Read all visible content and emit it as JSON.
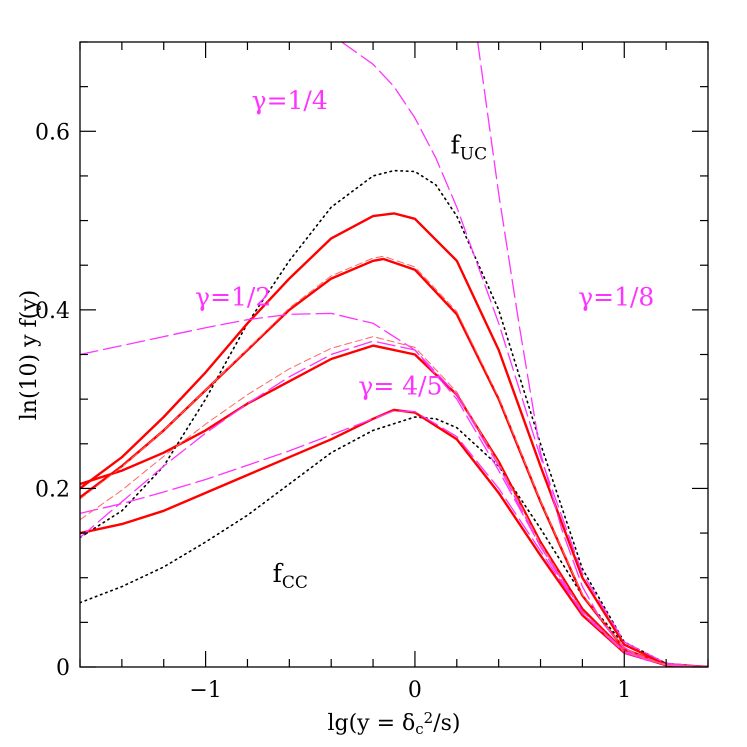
{
  "chart_data": {
    "type": "line",
    "xlabel": "lg(y = δc²/s)",
    "ylabel": "ln(10)  y f(y)",
    "xlim": [
      -1.6,
      1.4
    ],
    "ylim": [
      0,
      0.7
    ],
    "grid": false,
    "x_major_ticks": [
      -1,
      0,
      1
    ],
    "x_major_tick_labels": [
      "−1",
      "0",
      "1"
    ],
    "y_major_ticks": [
      0,
      0.2,
      0.4,
      0.6
    ],
    "y_major_tick_labels": [
      "0",
      "0.2",
      "0.4",
      "0.6"
    ],
    "annotations": [
      {
        "text": "γ=1/4",
        "x": -0.78,
        "y": 0.625,
        "color": "#ff33ff"
      },
      {
        "text": "γ=1/2",
        "x": -1.05,
        "y": 0.405,
        "color": "#ff33ff"
      },
      {
        "text": "γ=1/8",
        "x": 0.78,
        "y": 0.405,
        "color": "#ff33ff"
      },
      {
        "text": "γ= 4/5",
        "x": -0.27,
        "y": 0.305,
        "color": "#ff33ff"
      },
      {
        "text": "f_UC",
        "x": 0.17,
        "y": 0.575,
        "color": "#000000"
      },
      {
        "text": "f_CC",
        "x": -0.68,
        "y": 0.095,
        "color": "#000000"
      }
    ],
    "series": [
      {
        "style": "dotted",
        "color": "#000000",
        "x": [
          -1.6,
          -1.4,
          -1.2,
          -1.0,
          -0.8,
          -0.6,
          -0.4,
          -0.2,
          -0.1,
          0.0,
          0.1,
          0.2,
          0.4,
          0.6,
          0.8,
          1.0,
          1.2,
          1.4
        ],
        "y": [
          0.145,
          0.175,
          0.225,
          0.3,
          0.385,
          0.455,
          0.515,
          0.55,
          0.556,
          0.555,
          0.54,
          0.505,
          0.4,
          0.25,
          0.11,
          0.028,
          0.004,
          0.0
        ]
      },
      {
        "style": "dotted",
        "color": "#000000",
        "x": [
          -1.6,
          -1.4,
          -1.2,
          -1.0,
          -0.8,
          -0.6,
          -0.4,
          -0.2,
          0.0,
          0.1,
          0.2,
          0.4,
          0.6,
          0.8,
          1.0,
          1.2,
          1.4
        ],
        "y": [
          0.072,
          0.09,
          0.112,
          0.14,
          0.17,
          0.205,
          0.24,
          0.265,
          0.28,
          0.278,
          0.268,
          0.225,
          0.155,
          0.08,
          0.025,
          0.004,
          0.0
        ]
      },
      {
        "style": "solid",
        "color": "#ff0000",
        "x": [
          -1.6,
          -1.4,
          -1.2,
          -1.0,
          -0.8,
          -0.6,
          -0.4,
          -0.2,
          -0.1,
          0.0,
          0.2,
          0.4,
          0.6,
          0.8,
          1.0,
          1.2,
          1.4
        ],
        "y": [
          0.2,
          0.235,
          0.28,
          0.33,
          0.385,
          0.435,
          0.48,
          0.505,
          0.508,
          0.502,
          0.455,
          0.355,
          0.225,
          0.1,
          0.025,
          0.003,
          0.0
        ]
      },
      {
        "style": "solid",
        "color": "#ff0000",
        "x": [
          -1.6,
          -1.4,
          -1.2,
          -1.0,
          -0.8,
          -0.6,
          -0.4,
          -0.2,
          -0.15,
          0.0,
          0.2,
          0.4,
          0.6,
          0.8,
          1.0,
          1.2,
          1.4
        ],
        "y": [
          0.19,
          0.225,
          0.265,
          0.31,
          0.355,
          0.4,
          0.435,
          0.455,
          0.457,
          0.445,
          0.395,
          0.3,
          0.185,
          0.08,
          0.02,
          0.002,
          0.0
        ]
      },
      {
        "style": "solid",
        "color": "#ff0000",
        "x": [
          -1.6,
          -1.4,
          -1.2,
          -1.0,
          -0.8,
          -0.6,
          -0.4,
          -0.2,
          0.0,
          0.2,
          0.4,
          0.6,
          0.8,
          1.0,
          1.2,
          1.4
        ],
        "y": [
          0.205,
          0.22,
          0.24,
          0.265,
          0.295,
          0.32,
          0.345,
          0.36,
          0.35,
          0.305,
          0.23,
          0.14,
          0.065,
          0.018,
          0.002,
          0.0
        ]
      },
      {
        "style": "solid",
        "color": "#ff0000",
        "x": [
          -1.6,
          -1.4,
          -1.2,
          -1.0,
          -0.8,
          -0.6,
          -0.4,
          -0.2,
          -0.1,
          0.0,
          0.2,
          0.4,
          0.6,
          0.8,
          1.0,
          1.2,
          1.4
        ],
        "y": [
          0.15,
          0.16,
          0.175,
          0.195,
          0.215,
          0.235,
          0.255,
          0.278,
          0.288,
          0.285,
          0.255,
          0.195,
          0.125,
          0.058,
          0.016,
          0.002,
          0.0
        ]
      },
      {
        "style": "dashed",
        "color": "#ff33ff",
        "x": [
          -0.35,
          -0.2,
          -0.1,
          0.0,
          0.1,
          0.2,
          0.4,
          0.6,
          0.8,
          1.0,
          1.2,
          1.4
        ],
        "y": [
          0.7,
          0.675,
          0.65,
          0.615,
          0.57,
          0.515,
          0.385,
          0.235,
          0.105,
          0.028,
          0.004,
          0.0
        ]
      },
      {
        "style": "dashed",
        "color": "#ff33ff",
        "x": [
          0.3,
          0.4,
          0.5,
          0.6,
          0.7,
          0.8,
          0.9,
          1.0,
          1.1,
          1.2,
          1.4
        ],
        "y": [
          0.7,
          0.53,
          0.38,
          0.24,
          0.155,
          0.09,
          0.048,
          0.022,
          0.008,
          0.003,
          0.0
        ]
      },
      {
        "style": "dashed",
        "color": "#ff33ff",
        "x": [
          -1.6,
          -1.4,
          -1.2,
          -1.0,
          -0.8,
          -0.6,
          -0.4,
          -0.2,
          0.0,
          0.2,
          0.4,
          0.6,
          0.8,
          1.0,
          1.2,
          1.4
        ],
        "y": [
          0.35,
          0.36,
          0.37,
          0.38,
          0.389,
          0.395,
          0.396,
          0.385,
          0.355,
          0.3,
          0.22,
          0.135,
          0.062,
          0.018,
          0.002,
          0.0
        ]
      },
      {
        "style": "dashed",
        "color": "#ff33ff",
        "x": [
          -1.6,
          -1.4,
          -1.2,
          -1.0,
          -0.8,
          -0.6,
          -0.4,
          -0.2,
          0.0,
          0.2,
          0.4,
          0.6,
          0.8,
          1.0,
          1.2,
          1.4
        ],
        "y": [
          0.145,
          0.185,
          0.225,
          0.262,
          0.295,
          0.325,
          0.35,
          0.365,
          0.355,
          0.305,
          0.225,
          0.135,
          0.06,
          0.016,
          0.002,
          0.0
        ]
      },
      {
        "style": "dashed",
        "color": "#ff33ff",
        "x": [
          -1.6,
          -1.4,
          -1.2,
          -1.0,
          -0.8,
          -0.6,
          -0.4,
          -0.2,
          -0.1,
          0.0,
          0.2,
          0.4,
          0.6,
          0.8,
          1.0,
          1.2,
          1.4
        ],
        "y": [
          0.172,
          0.183,
          0.196,
          0.21,
          0.226,
          0.242,
          0.26,
          0.278,
          0.287,
          0.286,
          0.258,
          0.2,
          0.13,
          0.06,
          0.017,
          0.002,
          0.0
        ]
      },
      {
        "style": "thin-dashed",
        "color": "#ff6666",
        "x": [
          -1.6,
          -1.4,
          -1.2,
          -1.0,
          -0.8,
          -0.6,
          -0.4,
          -0.2,
          -0.15,
          0.0,
          0.2,
          0.4,
          0.6,
          0.8,
          1.0,
          1.2,
          1.4
        ],
        "y": [
          0.188,
          0.224,
          0.265,
          0.31,
          0.356,
          0.402,
          0.438,
          0.458,
          0.46,
          0.448,
          0.398,
          0.302,
          0.186,
          0.081,
          0.02,
          0.002,
          0.0
        ]
      },
      {
        "style": "thin-dashed",
        "color": "#ff6666",
        "x": [
          -1.6,
          -1.4,
          -1.2,
          -1.0,
          -0.8,
          -0.6,
          -0.4,
          -0.2,
          0.0,
          0.2,
          0.4,
          0.6,
          0.8,
          1.0,
          1.2,
          1.4
        ],
        "y": [
          0.165,
          0.198,
          0.236,
          0.272,
          0.305,
          0.334,
          0.357,
          0.37,
          0.358,
          0.308,
          0.228,
          0.138,
          0.063,
          0.017,
          0.002,
          0.0
        ]
      }
    ]
  }
}
